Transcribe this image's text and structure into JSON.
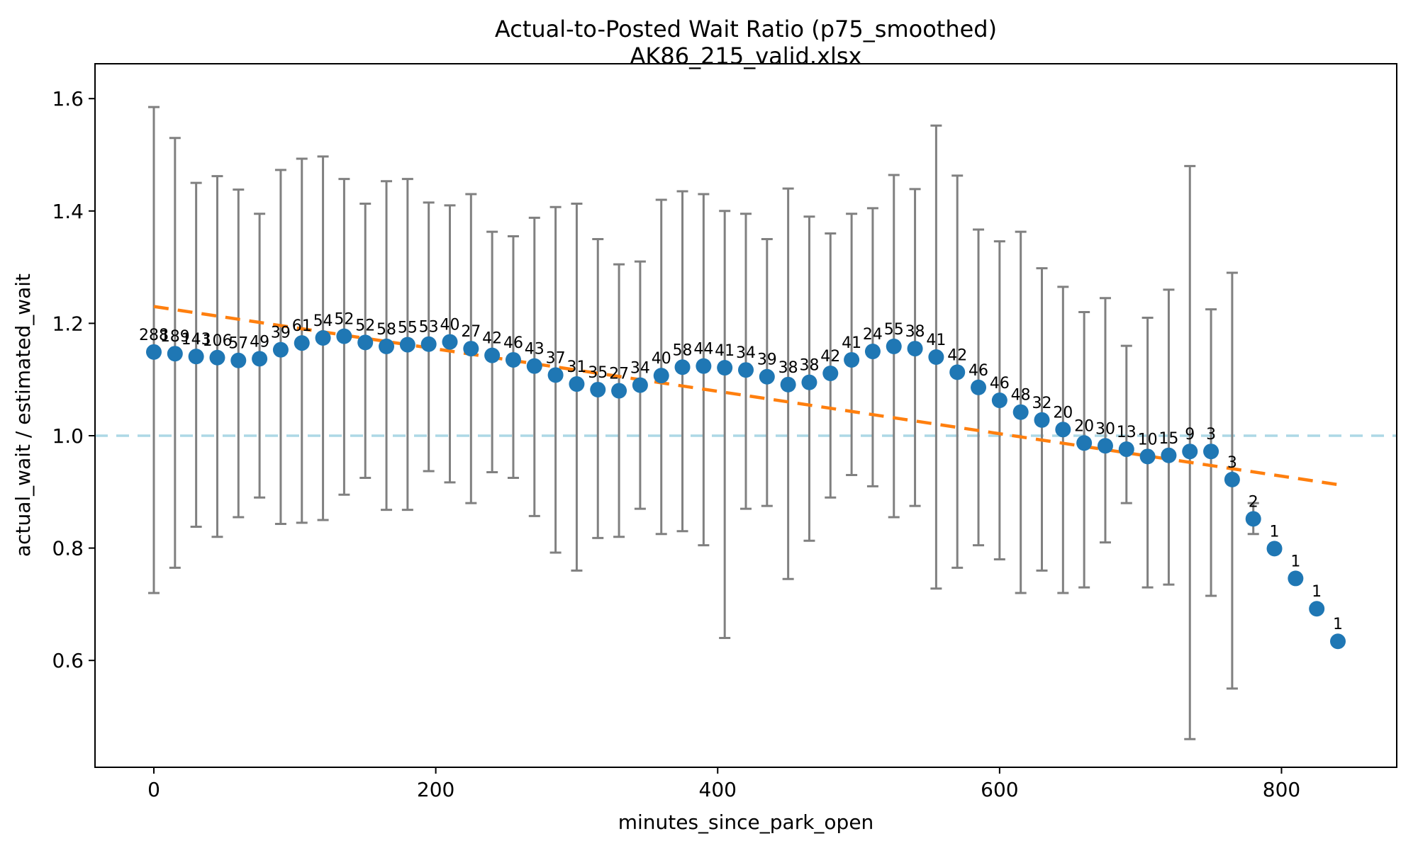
{
  "chart_data": {
    "type": "scatter",
    "title": "Actual-to-Posted Wait Ratio (p75_smoothed)",
    "subtitle": "AK86_215_valid.xlsx",
    "xlabel": "minutes_since_park_open",
    "ylabel": "actual_wait / estimated_wait",
    "xlim": [
      -41,
      882
    ],
    "ylim": [
      0.41,
      1.66
    ],
    "xticks": [
      0,
      200,
      400,
      600,
      800
    ],
    "yticks": [
      "0.6",
      "0.8",
      "1.0",
      "1.2",
      "1.4",
      "1.6"
    ],
    "grid": false,
    "legend": "none",
    "colors": {
      "marker": "#1f77b4",
      "errorbar": "#808080",
      "trend_line": "#ff7f0e",
      "reference_line": "#add8e6",
      "axes": "#000000",
      "background": "#ffffff"
    },
    "reference_line": {
      "y": 1.0,
      "style": "dashed"
    },
    "trend_line": {
      "x": [
        0,
        840
      ],
      "y": [
        1.23,
        0.913
      ],
      "style": "dashed"
    },
    "series": [
      {
        "name": "p75_smoothed actual-to-posted ratio",
        "marker": "circle",
        "points": [
          {
            "x": 0,
            "y": 1.149,
            "n": 288,
            "lo": 0.72,
            "hi": 1.585
          },
          {
            "x": 15,
            "y": 1.146,
            "n": 189,
            "lo": 0.765,
            "hi": 1.53
          },
          {
            "x": 30,
            "y": 1.141,
            "n": 143,
            "lo": 0.838,
            "hi": 1.45
          },
          {
            "x": 45,
            "y": 1.139,
            "n": 106,
            "lo": 0.82,
            "hi": 1.462
          },
          {
            "x": 60,
            "y": 1.134,
            "n": 57,
            "lo": 0.855,
            "hi": 1.438
          },
          {
            "x": 75,
            "y": 1.137,
            "n": 49,
            "lo": 0.89,
            "hi": 1.395
          },
          {
            "x": 90,
            "y": 1.153,
            "n": 39,
            "lo": 0.843,
            "hi": 1.473
          },
          {
            "x": 105,
            "y": 1.165,
            "n": 61,
            "lo": 0.845,
            "hi": 1.493
          },
          {
            "x": 120,
            "y": 1.174,
            "n": 54,
            "lo": 0.85,
            "hi": 1.497
          },
          {
            "x": 135,
            "y": 1.177,
            "n": 52,
            "lo": 0.895,
            "hi": 1.457
          },
          {
            "x": 150,
            "y": 1.166,
            "n": 52,
            "lo": 0.925,
            "hi": 1.413
          },
          {
            "x": 165,
            "y": 1.159,
            "n": 58,
            "lo": 0.868,
            "hi": 1.453
          },
          {
            "x": 180,
            "y": 1.162,
            "n": 55,
            "lo": 0.868,
            "hi": 1.457
          },
          {
            "x": 195,
            "y": 1.163,
            "n": 53,
            "lo": 0.937,
            "hi": 1.415
          },
          {
            "x": 210,
            "y": 1.167,
            "n": 40,
            "lo": 0.917,
            "hi": 1.41
          },
          {
            "x": 225,
            "y": 1.155,
            "n": 27,
            "lo": 0.88,
            "hi": 1.43
          },
          {
            "x": 240,
            "y": 1.143,
            "n": 42,
            "lo": 0.935,
            "hi": 1.363
          },
          {
            "x": 255,
            "y": 1.135,
            "n": 46,
            "lo": 0.925,
            "hi": 1.355
          },
          {
            "x": 270,
            "y": 1.124,
            "n": 43,
            "lo": 0.857,
            "hi": 1.388
          },
          {
            "x": 285,
            "y": 1.108,
            "n": 37,
            "lo": 0.792,
            "hi": 1.407
          },
          {
            "x": 300,
            "y": 1.092,
            "n": 31,
            "lo": 0.76,
            "hi": 1.413
          },
          {
            "x": 315,
            "y": 1.082,
            "n": 35,
            "lo": 0.818,
            "hi": 1.35
          },
          {
            "x": 330,
            "y": 1.08,
            "n": 27,
            "lo": 0.82,
            "hi": 1.305
          },
          {
            "x": 345,
            "y": 1.09,
            "n": 34,
            "lo": 0.87,
            "hi": 1.31
          },
          {
            "x": 360,
            "y": 1.107,
            "n": 40,
            "lo": 0.825,
            "hi": 1.42
          },
          {
            "x": 375,
            "y": 1.122,
            "n": 58,
            "lo": 0.83,
            "hi": 1.435
          },
          {
            "x": 390,
            "y": 1.124,
            "n": 44,
            "lo": 0.805,
            "hi": 1.43
          },
          {
            "x": 405,
            "y": 1.121,
            "n": 41,
            "lo": 0.64,
            "hi": 1.4
          },
          {
            "x": 420,
            "y": 1.117,
            "n": 34,
            "lo": 0.87,
            "hi": 1.395
          },
          {
            "x": 435,
            "y": 1.105,
            "n": 39,
            "lo": 0.875,
            "hi": 1.35
          },
          {
            "x": 450,
            "y": 1.091,
            "n": 38,
            "lo": 0.745,
            "hi": 1.44
          },
          {
            "x": 465,
            "y": 1.095,
            "n": 38,
            "lo": 0.813,
            "hi": 1.39
          },
          {
            "x": 480,
            "y": 1.111,
            "n": 42,
            "lo": 0.89,
            "hi": 1.36
          },
          {
            "x": 495,
            "y": 1.135,
            "n": 41,
            "lo": 0.93,
            "hi": 1.395
          },
          {
            "x": 510,
            "y": 1.15,
            "n": 24,
            "lo": 0.91,
            "hi": 1.405
          },
          {
            "x": 525,
            "y": 1.159,
            "n": 55,
            "lo": 0.855,
            "hi": 1.464
          },
          {
            "x": 540,
            "y": 1.155,
            "n": 38,
            "lo": 0.875,
            "hi": 1.439
          },
          {
            "x": 555,
            "y": 1.14,
            "n": 41,
            "lo": 0.728,
            "hi": 1.552
          },
          {
            "x": 570,
            "y": 1.113,
            "n": 42,
            "lo": 0.765,
            "hi": 1.463
          },
          {
            "x": 585,
            "y": 1.086,
            "n": 46,
            "lo": 0.805,
            "hi": 1.367
          },
          {
            "x": 600,
            "y": 1.063,
            "n": 46,
            "lo": 0.78,
            "hi": 1.346
          },
          {
            "x": 615,
            "y": 1.042,
            "n": 48,
            "lo": 0.72,
            "hi": 1.363
          },
          {
            "x": 630,
            "y": 1.028,
            "n": 32,
            "lo": 0.76,
            "hi": 1.298
          },
          {
            "x": 645,
            "y": 1.011,
            "n": 20,
            "lo": 0.72,
            "hi": 1.265
          },
          {
            "x": 660,
            "y": 0.987,
            "n": 20,
            "lo": 0.73,
            "hi": 1.22
          },
          {
            "x": 675,
            "y": 0.982,
            "n": 30,
            "lo": 0.81,
            "hi": 1.245
          },
          {
            "x": 690,
            "y": 0.976,
            "n": 13,
            "lo": 0.88,
            "hi": 1.16
          },
          {
            "x": 705,
            "y": 0.963,
            "n": 10,
            "lo": 0.73,
            "hi": 1.21
          },
          {
            "x": 720,
            "y": 0.965,
            "n": 15,
            "lo": 0.735,
            "hi": 1.26
          },
          {
            "x": 735,
            "y": 0.972,
            "n": 9,
            "lo": 0.46,
            "hi": 1.48
          },
          {
            "x": 750,
            "y": 0.972,
            "n": 3,
            "lo": 0.715,
            "hi": 1.225
          },
          {
            "x": 765,
            "y": 0.922,
            "n": 3,
            "lo": 0.55,
            "hi": 1.29
          },
          {
            "x": 780,
            "y": 0.852,
            "n": 2,
            "lo": 0.825,
            "hi": 0.88
          },
          {
            "x": 795,
            "y": 0.799,
            "n": 1,
            "lo": 0.799,
            "hi": 0.799
          },
          {
            "x": 810,
            "y": 0.746,
            "n": 1,
            "lo": 0.746,
            "hi": 0.746
          },
          {
            "x": 825,
            "y": 0.692,
            "n": 1,
            "lo": 0.692,
            "hi": 0.692
          },
          {
            "x": 840,
            "y": 0.634,
            "n": 1,
            "lo": 0.634,
            "hi": 0.634
          }
        ]
      }
    ]
  }
}
